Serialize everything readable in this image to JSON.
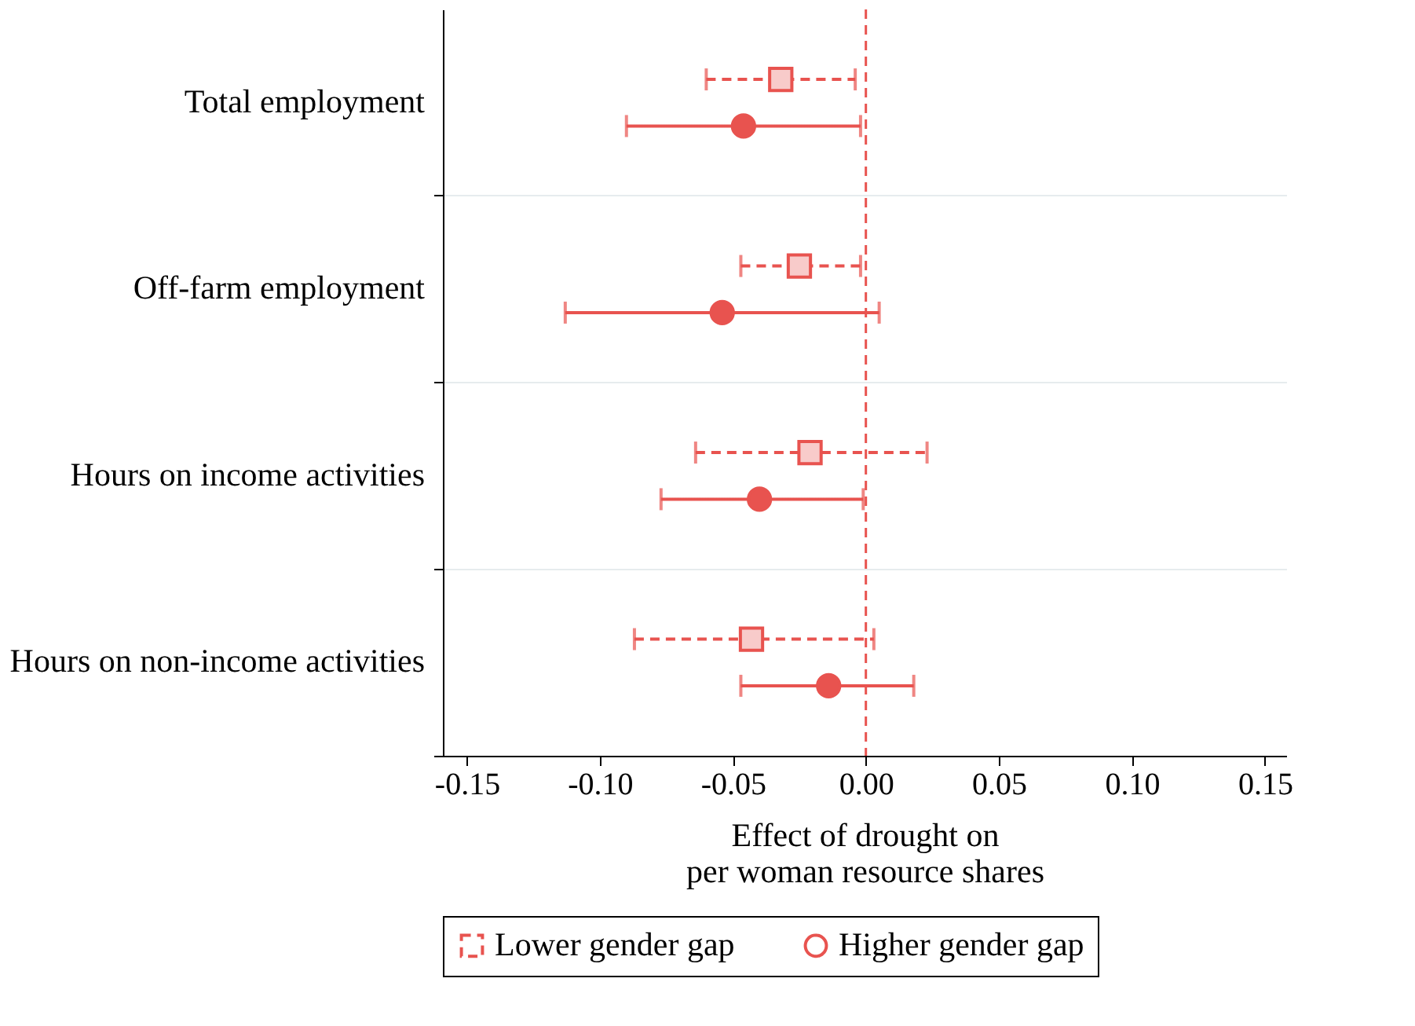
{
  "chart_data": {
    "type": "scatter",
    "categories": [
      "Total employment",
      "Off-farm employment",
      "Hours on income activities",
      "Hours on non-income activities"
    ],
    "series": [
      {
        "name": "Lower gender gap",
        "color": "#e8534f",
        "marker": "square",
        "line_style": "dashed",
        "values": [
          -0.032,
          -0.025,
          -0.021,
          -0.043
        ],
        "errors": [
          [
            -0.06,
            -0.004
          ],
          [
            -0.047,
            -0.002
          ],
          [
            -0.064,
            0.023
          ],
          [
            -0.087,
            0.003
          ]
        ]
      },
      {
        "name": "Higher gender gap",
        "color": "#e8534f",
        "marker": "circle",
        "line_style": "solid",
        "values": [
          -0.046,
          -0.054,
          -0.04,
          -0.014
        ],
        "errors": [
          [
            -0.09,
            -0.002
          ],
          [
            -0.113,
            0.005
          ],
          [
            -0.077,
            -0.001
          ],
          [
            -0.047,
            0.018
          ]
        ]
      }
    ],
    "orientation": "horizontal",
    "xlabel": "Effect of drought on\nper woman resource shares",
    "xlim": [
      -0.159,
      0.158
    ],
    "xticks": [
      {
        "value": -0.15,
        "label": "-0.15"
      },
      {
        "value": -0.1,
        "label": "-0.10"
      },
      {
        "value": -0.05,
        "label": "-0.05"
      },
      {
        "value": 0,
        "label": "0.00"
      },
      {
        "value": 0.05,
        "label": "0.05"
      },
      {
        "value": 0.1,
        "label": "0.10"
      },
      {
        "value": 0.15,
        "label": "0.15"
      }
    ],
    "ref_lines": [
      {
        "axis": "x",
        "value": 0,
        "label": null,
        "color": "#e8534f",
        "line_style": "dashed"
      }
    ],
    "grid": "y",
    "legend": "bottom"
  }
}
